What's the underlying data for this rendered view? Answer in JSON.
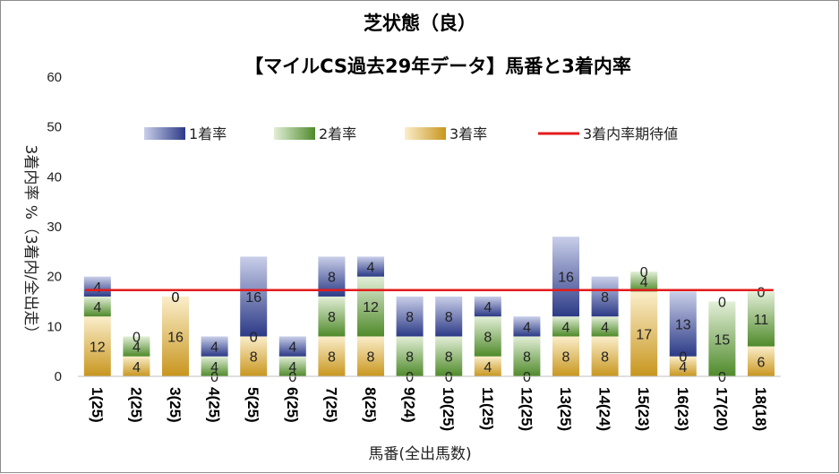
{
  "chart_data": {
    "type": "bar",
    "stacked": true,
    "title": "芝状態（良）",
    "subtitle": "【マイルCS過去29年データ】馬番と3着内率",
    "xlabel": "馬番(全出馬数)",
    "ylabel": "3着内率 %（3着内/全出走）",
    "ylim": [
      0,
      60
    ],
    "yticks": [
      0,
      10,
      20,
      30,
      40,
      50,
      60
    ],
    "categories": [
      "1(25)",
      "2(25)",
      "3(25)",
      "4(25)",
      "5(25)",
      "6(25)",
      "7(25)",
      "8(25)",
      "9(24)",
      "10(25)",
      "11(25)",
      "12(25)",
      "13(25)",
      "14(24)",
      "15(23)",
      "16(23)",
      "17(20)",
      "18(18)"
    ],
    "series": [
      {
        "name": "3着率",
        "color": "#d6a93a",
        "values": [
          12,
          4,
          16,
          0,
          8,
          0,
          8,
          8,
          0,
          0,
          4,
          0,
          8,
          8,
          17,
          4,
          0,
          6
        ]
      },
      {
        "name": "2着率",
        "color": "#6e9e46",
        "values": [
          4,
          4,
          0,
          4,
          0,
          4,
          8,
          12,
          8,
          8,
          8,
          8,
          4,
          4,
          4,
          0,
          15,
          11
        ]
      },
      {
        "name": "1着率",
        "color": "#3f4f9a",
        "values": [
          4,
          0,
          0,
          4,
          16,
          4,
          8,
          4,
          8,
          8,
          4,
          4,
          16,
          8,
          0,
          13,
          0,
          0
        ]
      }
    ],
    "expected_line": {
      "name": "3着内率期待値",
      "color": "#e31b1b",
      "value": 17.3
    },
    "legend": [
      "1着率",
      "2着率",
      "3着率",
      "3着内率期待値"
    ]
  }
}
